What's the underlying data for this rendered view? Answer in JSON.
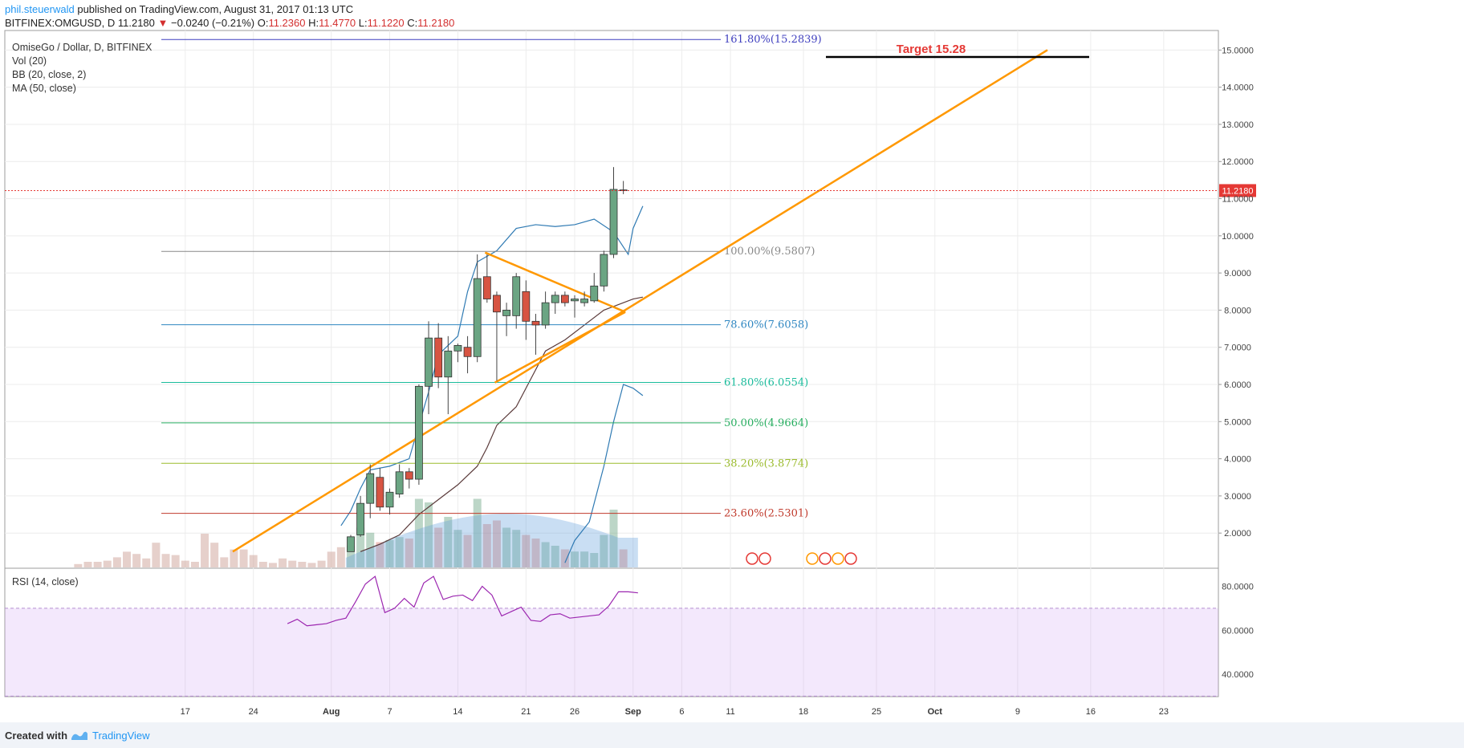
{
  "header": {
    "author": "phil.steuerwald",
    "published": "published on TradingView.com, August 31, 2017 01:13 UTC",
    "symbol": "BITFINEX:OMGUSD, D",
    "last": "11.2180",
    "change": "−0.0240 (−0.21%)",
    "open_label": "O:",
    "open": "11.2360",
    "high_label": "H:",
    "high": "11.4770",
    "low_label": "L:",
    "low": "11.1220",
    "close_label": "C:",
    "close": "11.2180"
  },
  "legend": {
    "title": "OmiseGo / Dollar, D, BITFINEX",
    "vol": "Vol (20)",
    "bb": "BB (20, close, 2)",
    "ma": "MA (50, close)",
    "rsi": "RSI (14, close)"
  },
  "footer": {
    "created_with": "Created with",
    "brand": "TradingView"
  },
  "colors": {
    "up": "#6ba583",
    "down": "#d75442",
    "trend": "#ff9800",
    "price_line": "#e53935",
    "rsi": "#9c27b0",
    "target_text": "#e53935"
  },
  "chart_data": {
    "type": "candlestick",
    "price_axis": {
      "ylim": [
        1.5,
        16.0
      ],
      "ticks": [
        "15.0000",
        "14.0000",
        "13.0000",
        "12.0000",
        "11.0000",
        "10.0000",
        "9.0000",
        "8.0000",
        "7.0000",
        "6.0000",
        "5.0000",
        "4.0000",
        "3.0000",
        "2.0000"
      ]
    },
    "rsi_axis": {
      "ylim": [
        30,
        88
      ],
      "ticks": [
        "80.0000",
        "60.0000",
        "40.0000"
      ],
      "band": [
        30,
        70
      ]
    },
    "x_ticks": [
      "17",
      "24",
      "Aug",
      "7",
      "14",
      "21",
      "26",
      "Sep",
      "6",
      "11",
      "18",
      "25",
      "Oct",
      "9",
      "16",
      "23"
    ],
    "last_price_label": "11.2180",
    "target_label": "Target 15.28",
    "fib_levels": [
      {
        "label": "161.80%(15.2839)",
        "value": 15.2839,
        "color": "#3f3fbf"
      },
      {
        "label": "100.00%(9.5807)",
        "value": 9.5807,
        "color": "#888888"
      },
      {
        "label": "78.60%(7.6058)",
        "value": 7.6058,
        "color": "#2e86c1"
      },
      {
        "label": "61.80%(6.0554)",
        "value": 6.0554,
        "color": "#1abc9c"
      },
      {
        "label": "50.00%(4.9664)",
        "value": 4.9664,
        "color": "#27ae60"
      },
      {
        "label": "38.20%(3.8774)",
        "value": 3.8774,
        "color": "#9bbb2c"
      },
      {
        "label": "23.60%(2.5301)",
        "value": 2.5301,
        "color": "#c0392b"
      }
    ],
    "candles": [
      {
        "date": "Aug 3",
        "o": 1.5,
        "h": 1.95,
        "l": 1.5,
        "c": 1.9
      },
      {
        "date": "Aug 4",
        "o": 1.95,
        "h": 3.0,
        "l": 1.9,
        "c": 2.8
      },
      {
        "date": "Aug 5",
        "o": 2.8,
        "h": 3.85,
        "l": 2.4,
        "c": 3.6
      },
      {
        "date": "Aug 6",
        "o": 3.5,
        "h": 3.75,
        "l": 2.6,
        "c": 2.7
      },
      {
        "date": "Aug 7",
        "o": 2.7,
        "h": 3.2,
        "l": 2.5,
        "c": 3.1
      },
      {
        "date": "Aug 8",
        "o": 3.05,
        "h": 3.85,
        "l": 2.95,
        "c": 3.65
      },
      {
        "date": "Aug 9",
        "o": 3.65,
        "h": 3.75,
        "l": 3.2,
        "c": 3.45
      },
      {
        "date": "Aug 10",
        "o": 3.45,
        "h": 6.0,
        "l": 3.3,
        "c": 5.95
      },
      {
        "date": "Aug 11",
        "o": 5.95,
        "h": 7.7,
        "l": 5.2,
        "c": 7.25
      },
      {
        "date": "Aug 12",
        "o": 7.25,
        "h": 7.65,
        "l": 5.9,
        "c": 6.2
      },
      {
        "date": "Aug 13",
        "o": 6.2,
        "h": 7.3,
        "l": 5.2,
        "c": 6.9
      },
      {
        "date": "Aug 14",
        "o": 6.9,
        "h": 7.1,
        "l": 6.6,
        "c": 7.05
      },
      {
        "date": "Aug 15",
        "o": 7.0,
        "h": 7.3,
        "l": 6.3,
        "c": 6.75
      },
      {
        "date": "Aug 16",
        "o": 6.75,
        "h": 9.5,
        "l": 6.6,
        "c": 8.85
      },
      {
        "date": "Aug 17",
        "o": 8.9,
        "h": 9.5,
        "l": 8.2,
        "c": 8.3
      },
      {
        "date": "Aug 18",
        "o": 8.4,
        "h": 8.5,
        "l": 6.1,
        "c": 7.95
      },
      {
        "date": "Aug 19",
        "o": 7.85,
        "h": 8.2,
        "l": 7.3,
        "c": 8.0
      },
      {
        "date": "Aug 20",
        "o": 7.85,
        "h": 9.0,
        "l": 7.5,
        "c": 8.9
      },
      {
        "date": "Aug 21",
        "o": 8.5,
        "h": 8.8,
        "l": 7.2,
        "c": 7.7
      },
      {
        "date": "Aug 22",
        "o": 7.7,
        "h": 7.9,
        "l": 6.8,
        "c": 7.6
      },
      {
        "date": "Aug 23",
        "o": 7.6,
        "h": 8.5,
        "l": 7.5,
        "c": 8.2
      },
      {
        "date": "Aug 24",
        "o": 8.2,
        "h": 8.5,
        "l": 7.9,
        "c": 8.4
      },
      {
        "date": "Aug 25",
        "o": 8.4,
        "h": 8.5,
        "l": 8.1,
        "c": 8.2
      },
      {
        "date": "Aug 26",
        "o": 8.25,
        "h": 8.4,
        "l": 7.8,
        "c": 8.3
      },
      {
        "date": "Aug 27",
        "o": 8.2,
        "h": 8.5,
        "l": 8.1,
        "c": 8.3
      },
      {
        "date": "Aug 28",
        "o": 8.25,
        "h": 9.0,
        "l": 8.2,
        "c": 8.65
      },
      {
        "date": "Aug 29",
        "o": 8.65,
        "h": 9.6,
        "l": 8.5,
        "c": 9.5
      },
      {
        "date": "Aug 30",
        "o": 9.5,
        "h": 11.85,
        "l": 9.4,
        "c": 11.25
      },
      {
        "date": "Aug 31",
        "o": 11.236,
        "h": 11.477,
        "l": 11.122,
        "c": 11.218
      }
    ],
    "volume_up_flags": [
      1,
      1,
      1,
      0,
      1,
      1,
      0,
      1,
      1,
      0,
      1,
      1,
      0,
      1,
      0,
      0,
      1,
      1,
      0,
      0,
      1,
      1,
      0,
      1,
      1,
      1,
      1,
      1,
      0
    ],
    "volume_rel": [
      0.3,
      0.55,
      0.48,
      0.35,
      0.38,
      0.42,
      0.4,
      0.95,
      0.9,
      0.55,
      0.7,
      0.52,
      0.45,
      0.95,
      0.6,
      0.65,
      0.55,
      0.52,
      0.45,
      0.4,
      0.35,
      0.3,
      0.25,
      0.22,
      0.22,
      0.2,
      0.45,
      0.8,
      0.25
    ],
    "rsi": [
      63,
      65,
      62,
      62.5,
      63,
      64.5,
      65.5,
      73,
      81,
      84.5,
      68,
      70,
      74.5,
      70.5,
      81.5,
      84.5,
      74,
      75.5,
      76,
      73.5,
      80,
      76,
      66.5,
      68.5,
      70.5,
      64.5,
      64,
      67,
      67.5,
      65.5,
      66,
      66.5,
      67,
      71,
      77.5,
      77.5,
      77
    ]
  }
}
